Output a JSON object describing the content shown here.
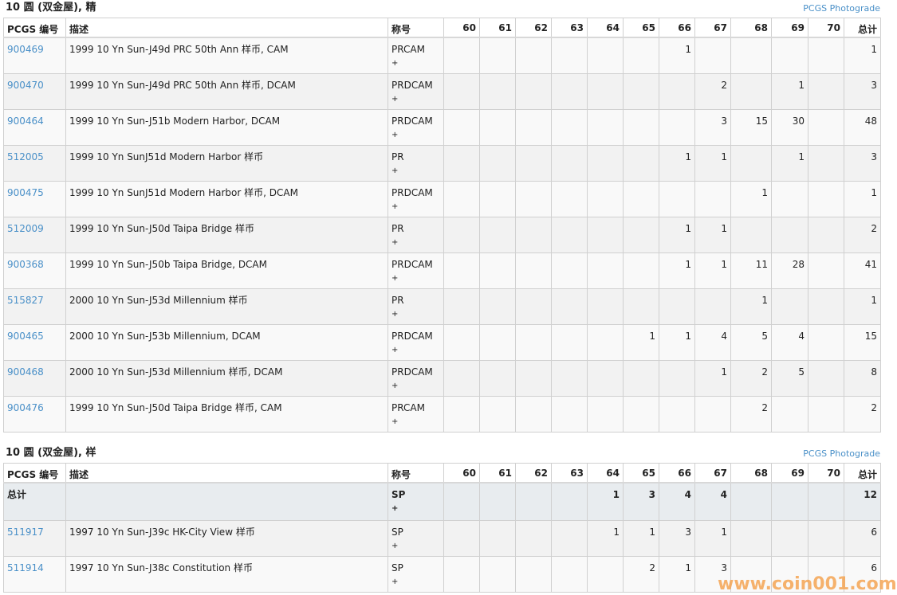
{
  "columns": {
    "pcgs": "PCGS 编号",
    "desc": "描述",
    "desig": "称号",
    "grades": [
      "60",
      "61",
      "62",
      "63",
      "64",
      "65",
      "66",
      "67",
      "68",
      "69",
      "70"
    ],
    "total": "总计"
  },
  "photograde_label": "PCGS Photograde",
  "sections": [
    {
      "title": "10 圆 (双金屋), 精",
      "rows": [
        {
          "pcgs": "900469",
          "desc": "1999 10 Yn Sun-J49d PRC 50th Ann 样币, CAM",
          "desig": "PRCAM",
          "plus": "+",
          "grades": [
            "",
            "",
            "",
            "",
            "",
            "",
            "1",
            "",
            "",
            "",
            ""
          ],
          "total": "1"
        },
        {
          "pcgs": "900470",
          "desc": "1999 10 Yn Sun-J49d PRC 50th Ann 样币, DCAM",
          "desig": "PRDCAM",
          "plus": "+",
          "grades": [
            "",
            "",
            "",
            "",
            "",
            "",
            "",
            "2",
            "",
            "1",
            ""
          ],
          "total": "3"
        },
        {
          "pcgs": "900464",
          "desc": "1999 10 Yn Sun-J51b Modern Harbor, DCAM",
          "desig": "PRDCAM",
          "plus": "+",
          "grades": [
            "",
            "",
            "",
            "",
            "",
            "",
            "",
            "3",
            "15",
            "30",
            ""
          ],
          "total": "48"
        },
        {
          "pcgs": "512005",
          "desc": "1999 10 Yn SunJ51d Modern Harbor 样币",
          "desig": "PR",
          "plus": "+",
          "grades": [
            "",
            "",
            "",
            "",
            "",
            "",
            "1",
            "1",
            "",
            "1",
            ""
          ],
          "total": "3"
        },
        {
          "pcgs": "900475",
          "desc": "1999 10 Yn SunJ51d Modern Harbor 样币, DCAM",
          "desig": "PRDCAM",
          "plus": "+",
          "grades": [
            "",
            "",
            "",
            "",
            "",
            "",
            "",
            "",
            "1",
            "",
            ""
          ],
          "total": "1"
        },
        {
          "pcgs": "512009",
          "desc": "1999 10 Yn Sun-J50d Taipa Bridge 样币",
          "desig": "PR",
          "plus": "+",
          "grades": [
            "",
            "",
            "",
            "",
            "",
            "",
            "1",
            "1",
            "",
            "",
            ""
          ],
          "total": "2"
        },
        {
          "pcgs": "900368",
          "desc": "1999 10 Yn Sun-J50b Taipa Bridge, DCAM",
          "desig": "PRDCAM",
          "plus": "+",
          "grades": [
            "",
            "",
            "",
            "",
            "",
            "",
            "1",
            "1",
            "11",
            "28",
            ""
          ],
          "total": "41"
        },
        {
          "pcgs": "515827",
          "desc": "2000 10 Yn Sun-J53d Millennium 样币",
          "desig": "PR",
          "plus": "+",
          "grades": [
            "",
            "",
            "",
            "",
            "",
            "",
            "",
            "",
            "1",
            "",
            ""
          ],
          "total": "1"
        },
        {
          "pcgs": "900465",
          "desc": "2000 10 Yn Sun-J53b Millennium, DCAM",
          "desig": "PRDCAM",
          "plus": "+",
          "grades": [
            "",
            "",
            "",
            "",
            "",
            "1",
            "1",
            "4",
            "5",
            "4",
            ""
          ],
          "total": "15"
        },
        {
          "pcgs": "900468",
          "desc": "2000 10 Yn Sun-J53d Millennium 样币, DCAM",
          "desig": "PRDCAM",
          "plus": "+",
          "grades": [
            "",
            "",
            "",
            "",
            "",
            "",
            "",
            "1",
            "2",
            "5",
            ""
          ],
          "total": "8"
        },
        {
          "pcgs": "900476",
          "desc": "1999 10 Yn Sun-J50d Taipa Bridge 样币, CAM",
          "desig": "PRCAM",
          "plus": "+",
          "grades": [
            "",
            "",
            "",
            "",
            "",
            "",
            "",
            "",
            "2",
            "",
            ""
          ],
          "total": "2"
        }
      ]
    },
    {
      "title": "10 圆 (双金屋), 样",
      "rows": [
        {
          "total_row": true,
          "pcgs": "总计",
          "desc": "",
          "desig": "SP",
          "plus": "+",
          "grades": [
            "",
            "",
            "",
            "",
            "1",
            "3",
            "4",
            "4",
            "",
            "",
            ""
          ],
          "total": "12"
        },
        {
          "pcgs": "511917",
          "desc": "1997 10 Yn Sun-J39c HK-City View 样币",
          "desig": "SP",
          "plus": "+",
          "grades": [
            "",
            "",
            "",
            "",
            "1",
            "1",
            "3",
            "1",
            "",
            "",
            ""
          ],
          "total": "6"
        },
        {
          "pcgs": "511914",
          "desc": "1997 10 Yn Sun-J38c Constitution 样币",
          "desig": "SP",
          "plus": "+",
          "grades": [
            "",
            "",
            "",
            "",
            "",
            "2",
            "1",
            "3",
            "",
            "",
            ""
          ],
          "total": "6"
        }
      ]
    }
  ],
  "watermark": "www.coin001.com"
}
